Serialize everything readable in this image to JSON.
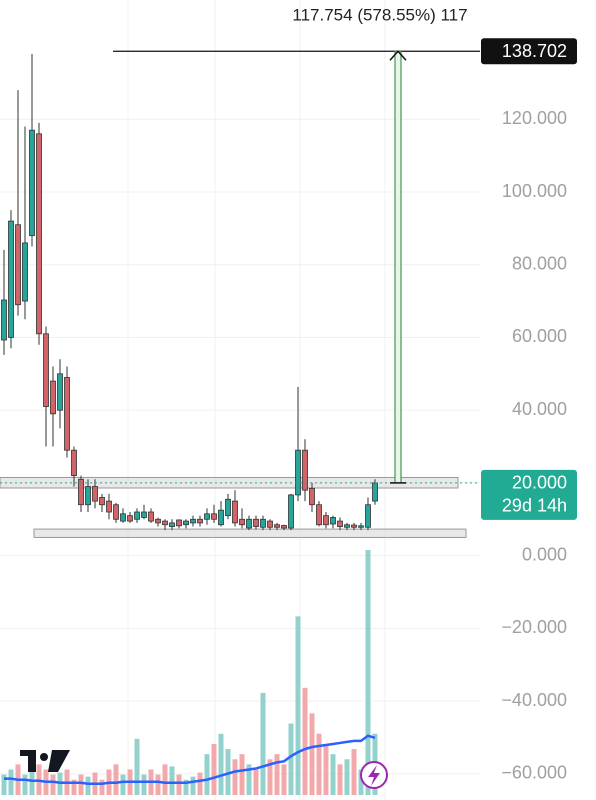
{
  "chart_data": {
    "type": "candlestick",
    "measure_label": "117.754 (578.55%) 117",
    "target_price": {
      "value": 138.702,
      "label": "138.702"
    },
    "last_price": {
      "value": 20,
      "label": "20.000"
    },
    "countdown": "29d 14h",
    "zones": [
      [
        18.6,
        21.5
      ],
      [
        5,
        7.3
      ]
    ],
    "ylim": [
      -67.2,
      152.8
    ],
    "yticks": [
      {
        "value": 120,
        "label": "120.000"
      },
      {
        "value": 100,
        "label": "100.000"
      },
      {
        "value": 80,
        "label": "80.000"
      },
      {
        "value": 60,
        "label": "60.000"
      },
      {
        "value": 40,
        "label": "40.000"
      },
      {
        "value": 20,
        "label": "20.000"
      },
      {
        "value": 0,
        "label": "0.000"
      },
      {
        "value": -20,
        "label": "−20.000"
      },
      {
        "value": -40,
        "label": "−40.000"
      },
      {
        "value": -60,
        "label": "−60.000"
      }
    ],
    "grid": true,
    "up_color": "#26a69a",
    "down_color": "#d06468",
    "volume_up_color": "#93d2cc",
    "volume_down_color": "#f2a9ab",
    "ma_color": "#2962ff",
    "open": [
      59.3,
      60,
      91,
      70,
      88,
      116,
      61,
      48,
      40,
      49,
      29,
      21,
      14,
      19,
      16,
      15,
      14,
      9.5,
      11,
      10,
      10.5,
      12,
      10,
      9.5,
      8,
      9.8,
      8.5,
      9,
      10,
      10,
      11.5,
      8.5,
      11,
      15,
      10,
      7.6,
      10,
      7.8,
      9.5,
      8.5,
      8.3,
      7.6,
      16.7,
      29,
      18.5,
      14,
      11,
      8.7,
      9.5,
      7.8,
      8.4,
      7.8,
      7.8,
      15
    ],
    "high": [
      84.1,
      95,
      128,
      118,
      138,
      119,
      63,
      52,
      54,
      52,
      30,
      22,
      21,
      21,
      17,
      17,
      14.5,
      13,
      12,
      13,
      14,
      13,
      10.5,
      10,
      10,
      10,
      10,
      11,
      11,
      13,
      14,
      15,
      17,
      18,
      13,
      11,
      11,
      11,
      10,
      9,
      8.5,
      17,
      46.4,
      32,
      20,
      15,
      12,
      11,
      10.5,
      9,
      9,
      9,
      16,
      21
    ],
    "low": [
      55.2,
      57,
      66,
      65,
      85,
      58,
      30,
      30,
      35,
      27,
      19,
      12,
      12,
      13,
      12,
      10,
      9,
      9,
      9,
      9,
      10,
      9,
      8,
      7,
      7,
      7.5,
      7.5,
      8,
      8,
      8.5,
      9,
      8,
      10,
      8,
      7.5,
      7,
      7.2,
      7,
      7,
      7,
      7,
      7,
      15,
      15,
      12,
      8,
      7.5,
      7.5,
      7,
      7,
      7,
      7,
      7,
      14
    ],
    "close": [
      70.3,
      92,
      69,
      86,
      117,
      61,
      41,
      39,
      50,
      29,
      22,
      14,
      19,
      15,
      14,
      12,
      10,
      11.5,
      9.5,
      12,
      12,
      9.5,
      9,
      8.5,
      9,
      8.2,
      9.5,
      10,
      9,
      11.5,
      10,
      12.5,
      15.5,
      9,
      8.5,
      10,
      8,
      10,
      7.8,
      7.8,
      7.6,
      16.7,
      29,
      18,
      14,
      8.5,
      8.5,
      10.5,
      8,
      8.5,
      7.8,
      8.2,
      14,
      20
    ],
    "volume": [
      20,
      25,
      30,
      20,
      35,
      30,
      25,
      20,
      22,
      25,
      15,
      20,
      18,
      22,
      15,
      25,
      30,
      20,
      25,
      55,
      20,
      25,
      20,
      30,
      28,
      20,
      15,
      18,
      22,
      40,
      50,
      60,
      45,
      35,
      40,
      30,
      25,
      100,
      35,
      40,
      30,
      70,
      175,
      105,
      80,
      60,
      50,
      40,
      30,
      35,
      45,
      25,
      240,
      60
    ],
    "volume_ma": [
      16,
      16,
      15,
      15,
      14,
      14,
      13,
      13,
      12,
      12,
      12,
      12,
      11,
      11,
      11,
      12,
      12,
      13,
      13,
      13,
      13,
      13,
      13,
      12,
      12,
      12,
      12,
      13,
      14,
      15,
      17,
      19,
      21,
      23,
      24,
      25,
      26,
      28,
      30,
      32,
      33,
      38,
      42,
      45,
      47,
      48,
      49,
      50,
      51,
      52,
      53,
      53,
      58,
      56
    ]
  }
}
